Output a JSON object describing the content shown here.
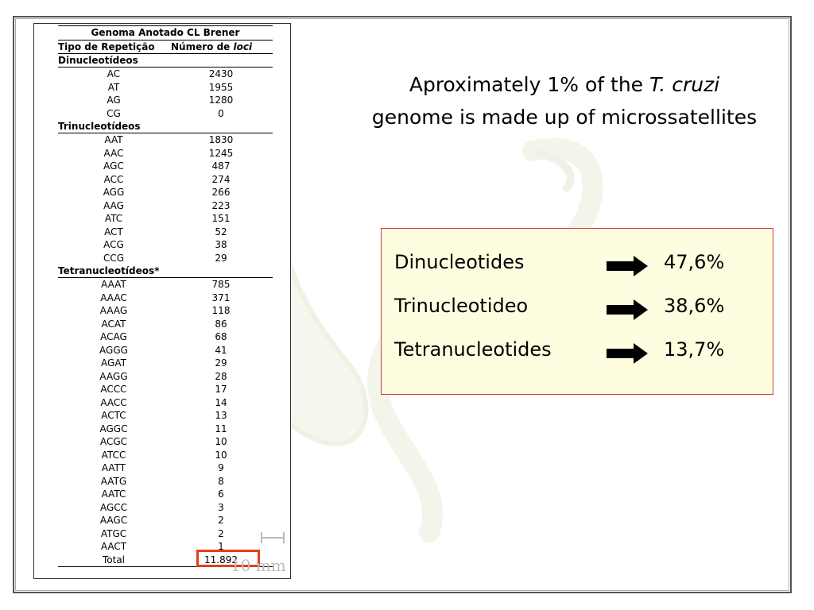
{
  "table": {
    "title": "Genoma Anotado CL Brener",
    "col_type": "Tipo de Repetição",
    "col_count_prefix": "Número de ",
    "col_count_italic": "loci",
    "sections": [
      {
        "label": "Dinucleotídeos",
        "rows": [
          [
            "AC",
            "2430"
          ],
          [
            "AT",
            "1955"
          ],
          [
            "AG",
            "1280"
          ],
          [
            "CG",
            "0"
          ]
        ]
      },
      {
        "label": "Trinucleotídeos",
        "rows": [
          [
            "AAT",
            "1830"
          ],
          [
            "AAC",
            "1245"
          ],
          [
            "AGC",
            "487"
          ],
          [
            "ACC",
            "274"
          ],
          [
            "AGG",
            "266"
          ],
          [
            "AAG",
            "223"
          ],
          [
            "ATC",
            "151"
          ],
          [
            "ACT",
            "52"
          ],
          [
            "ACG",
            "38"
          ],
          [
            "CCG",
            "29"
          ]
        ]
      },
      {
        "label": "Tetranucleotídeos*",
        "rows": [
          [
            "AAAT",
            "785"
          ],
          [
            "AAAC",
            "371"
          ],
          [
            "AAAG",
            "118"
          ],
          [
            "ACAT",
            "86"
          ],
          [
            "ACAG",
            "68"
          ],
          [
            "AGGG",
            "41"
          ],
          [
            "AGAT",
            "29"
          ],
          [
            "AAGG",
            "28"
          ],
          [
            "ACCC",
            "17"
          ],
          [
            "AACC",
            "14"
          ],
          [
            "ACTC",
            "13"
          ],
          [
            "AGGC",
            "11"
          ],
          [
            "ACGC",
            "10"
          ],
          [
            "ATCC",
            "10"
          ],
          [
            "AATT",
            "9"
          ],
          [
            "AATG",
            "8"
          ],
          [
            "AATC",
            "6"
          ],
          [
            "AGCC",
            "3"
          ],
          [
            "AAGC",
            "2"
          ],
          [
            "ATGC",
            "2"
          ],
          [
            "AACT",
            "1"
          ]
        ]
      }
    ],
    "total_label": "Total",
    "total_value": "11.892"
  },
  "scale_label": "10 mm",
  "headline": {
    "line1_prefix": "Aproximately 1% of the ",
    "line1_italic": "T. cruzi",
    "line2": "genome is made up of microssatellites"
  },
  "stats": [
    {
      "label": "Dinucleotides",
      "value": "47,6%"
    },
    {
      "label": "Trinucleotideo",
      "value": "38,6%"
    },
    {
      "label": "Tetranucleotides",
      "value": "13,7%"
    }
  ],
  "colors": {
    "highlight_border": "#e0401a",
    "box_bg": "#fffde0",
    "box_border": "#d23a3a"
  }
}
